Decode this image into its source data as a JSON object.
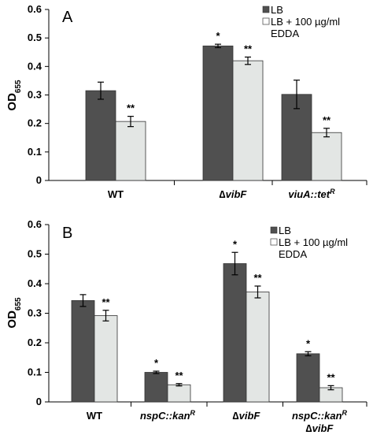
{
  "colors": {
    "lb": "#505050",
    "edda": "#e3e6e4",
    "axis": "#000000"
  },
  "chart_data": [
    {
      "type": "bar",
      "panel": "A",
      "ylabel": "OD",
      "ylabel_sub": "655",
      "ylim": [
        0,
        0.6
      ],
      "yticks": [
        "0",
        "0.1",
        "0.2",
        "0.3",
        "0.4",
        "0.5",
        "0.6"
      ],
      "categories": [
        {
          "parts": [
            {
              "t": "WT",
              "i": false
            }
          ]
        },
        {
          "parts": [
            {
              "t": "∆",
              "i": false
            },
            {
              "t": "vibF",
              "i": true
            }
          ]
        },
        {
          "parts": [
            {
              "t": "viuA::tet",
              "i": true
            },
            {
              "t": "R",
              "i": true,
              "sup": true
            }
          ]
        }
      ],
      "legend": [
        "LB",
        "LB + 100 µg/ml",
        "EDDA"
      ],
      "series": [
        {
          "name": "LB",
          "values": [
            0.315,
            0.472,
            0.302
          ],
          "errors": [
            0.03,
            0.006,
            0.05
          ],
          "sig": [
            "",
            "*",
            ""
          ]
        },
        {
          "name": "LB + 100 µg/ml EDDA",
          "values": [
            0.207,
            0.42,
            0.168
          ],
          "errors": [
            0.018,
            0.013,
            0.015
          ],
          "sig": [
            "**",
            "**",
            "**"
          ]
        }
      ]
    },
    {
      "type": "bar",
      "panel": "B",
      "ylabel": "OD",
      "ylabel_sub": "655",
      "ylim": [
        0,
        0.6
      ],
      "yticks": [
        "0",
        "0.1",
        "0.2",
        "0.3",
        "0.4",
        "0.5",
        "0.6"
      ],
      "categories": [
        {
          "parts": [
            {
              "t": "WT",
              "i": false
            }
          ]
        },
        {
          "parts": [
            {
              "t": "nspC::kan",
              "i": true
            },
            {
              "t": "R",
              "i": true,
              "sup": true
            }
          ]
        },
        {
          "parts": [
            {
              "t": "∆",
              "i": false
            },
            {
              "t": "vibF",
              "i": true
            }
          ]
        },
        {
          "parts": [
            {
              "t": "nspC::kan",
              "i": true
            },
            {
              "t": "R",
              "i": true,
              "sup": true
            }
          ],
          "parts2": [
            {
              "t": "∆",
              "i": false
            },
            {
              "t": "vibF",
              "i": true
            }
          ]
        }
      ],
      "legend": [
        "LB",
        "LB + 100 µg/ml",
        "EDDA"
      ],
      "series": [
        {
          "name": "LB",
          "values": [
            0.343,
            0.1,
            0.468,
            0.163
          ],
          "errors": [
            0.02,
            0.004,
            0.038,
            0.007
          ],
          "sig": [
            "",
            "*",
            "*",
            "*"
          ]
        },
        {
          "name": "LB + 100 µg/ml EDDA",
          "values": [
            0.292,
            0.058,
            0.372,
            0.048
          ],
          "errors": [
            0.018,
            0.004,
            0.02,
            0.007
          ],
          "sig": [
            "**",
            "**",
            "**",
            "**"
          ]
        }
      ]
    }
  ]
}
